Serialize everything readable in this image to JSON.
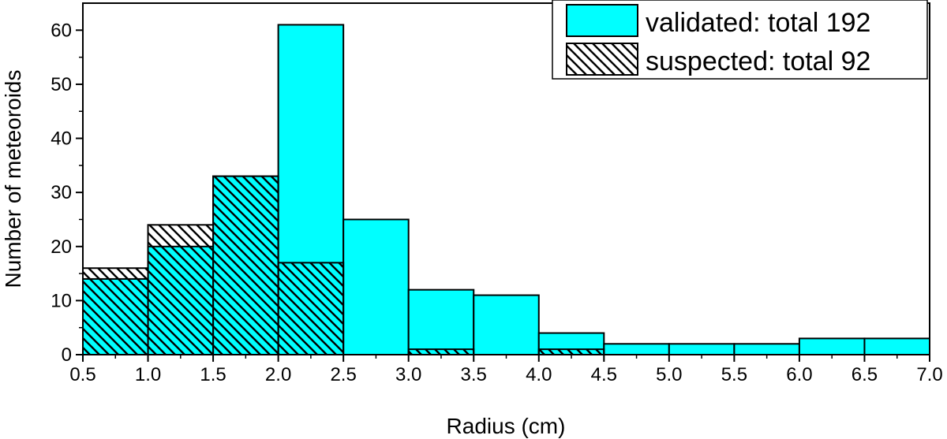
{
  "chart_data": {
    "type": "bar",
    "subtype": "stacked-histogram",
    "xlabel": "Radius (cm)",
    "ylabel": "Number of meteoroids",
    "xlim": [
      0.5,
      7.0
    ],
    "ylim": [
      0,
      65
    ],
    "x_ticks": [
      "0.5",
      "1.0",
      "1.5",
      "2.0",
      "2.5",
      "3.0",
      "3.5",
      "4.0",
      "4.5",
      "5.0",
      "5.5",
      "6.0",
      "6.5",
      "7.0"
    ],
    "y_ticks": [
      "0",
      "10",
      "20",
      "30",
      "40",
      "50",
      "60"
    ],
    "bin_edges": [
      0.5,
      1.0,
      1.5,
      2.0,
      2.5,
      3.0,
      3.5,
      4.0,
      4.5,
      5.0,
      5.5,
      6.0,
      6.5,
      7.0
    ],
    "grid": false,
    "legend_position": "top-right",
    "series": [
      {
        "name": "validated: total 192",
        "color": "#00FFFF",
        "pattern": "solid",
        "values": [
          14,
          20,
          33,
          61,
          25,
          12,
          11,
          4,
          2,
          2,
          2,
          3,
          3
        ]
      },
      {
        "name": "suspected: total 92",
        "color": "#FFFFFF",
        "pattern": "diagonal-hatch",
        "values": [
          16,
          24,
          33,
          17,
          0,
          1,
          0,
          1,
          0,
          0,
          0,
          0,
          0
        ]
      }
    ]
  }
}
